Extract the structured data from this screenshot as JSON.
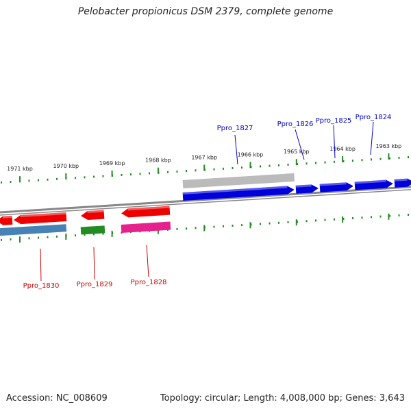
{
  "title": "Pelobacter propionicus DSM 2379, complete genome",
  "footer": {
    "accession": "Accession: NC_008609",
    "summary": "Topology: circular; Length: 4,008,000 bp; Genes: 3,643"
  },
  "scale": {
    "unit": "kbp",
    "ticks": [
      {
        "kbp": 1971,
        "label": "1971 kbp"
      },
      {
        "kbp": 1970,
        "label": "1970 kbp"
      },
      {
        "kbp": 1969,
        "label": "1969 kbp"
      },
      {
        "kbp": 1968,
        "label": "1968 kbp"
      },
      {
        "kbp": 1967,
        "label": "1967 kbp"
      },
      {
        "kbp": 1966,
        "label": "1966 kbp"
      },
      {
        "kbp": 1965,
        "label": "1965 kbp"
      },
      {
        "kbp": 1964,
        "label": "1964 kbp"
      },
      {
        "kbp": 1963,
        "label": "1963 kbp"
      }
    ]
  },
  "colors": {
    "forward_gene": "#0000dd",
    "reverse_gene": "#ee0000",
    "backbone": "#888888",
    "tick": "#228b22",
    "tick_label": "#222222",
    "forward_label": "#0000cc",
    "reverse_label": "#cc0000",
    "pseudo_feature": "#bbbbbb",
    "steelblue_feature": "#4682b4",
    "green_feature": "#228b22",
    "pink_feature": "#e6208c"
  },
  "genes": [
    {
      "name": "Ppro_1827",
      "strand": "forward"
    },
    {
      "name": "Ppro_1826",
      "strand": "forward"
    },
    {
      "name": "Ppro_1825",
      "strand": "forward"
    },
    {
      "name": "Ppro_1824",
      "strand": "forward"
    },
    {
      "name": "Ppro_1830",
      "strand": "reverse"
    },
    {
      "name": "Ppro_1829",
      "strand": "reverse"
    },
    {
      "name": "Ppro_1828",
      "strand": "reverse"
    }
  ]
}
